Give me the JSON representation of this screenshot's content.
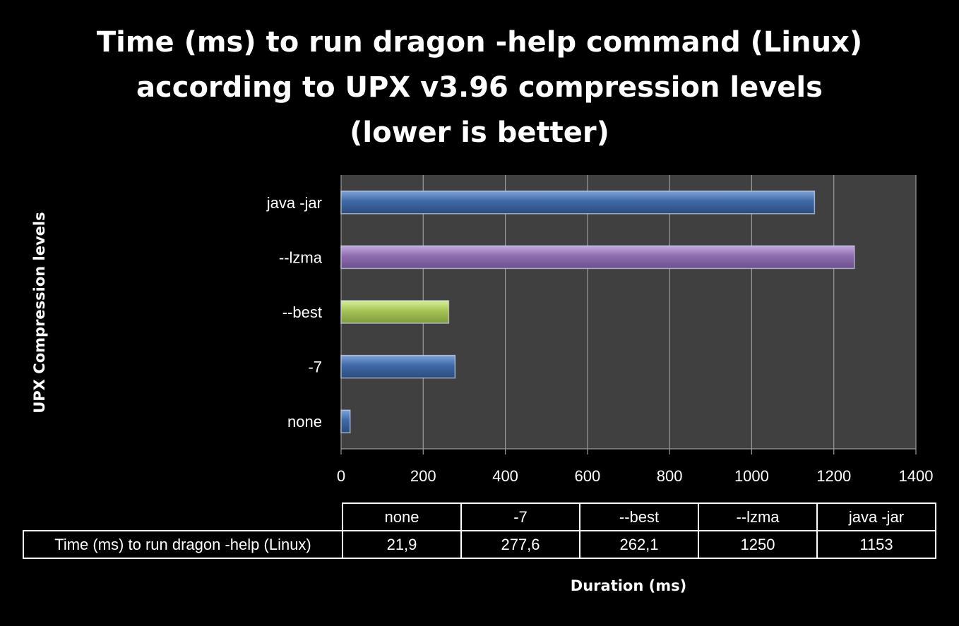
{
  "title_lines": [
    "Time (ms) to run dragon -help command (Linux)",
    "according to UPX v3.96 compression levels",
    "(lower is better)"
  ],
  "chart_data": {
    "type": "bar",
    "orientation": "horizontal",
    "title": "Time (ms) to run dragon -help command (Linux) according to UPX v3.96 compression levels (lower is better)",
    "xlabel": "Duration (ms)",
    "ylabel": "UPX Compression levels",
    "categories": [
      "none",
      "-7",
      "--best",
      "--lzma",
      "java -jar"
    ],
    "values": [
      21.9,
      277.6,
      262.1,
      1250,
      1153
    ],
    "colors": [
      "#4a72ab",
      "#4a72ab",
      "#a8c55a",
      "#9173b1",
      "#4a72ab"
    ],
    "xlim": [
      0,
      1400
    ],
    "xticks": [
      "0",
      "200",
      "400",
      "600",
      "800",
      "1000",
      "1200",
      "1400"
    ],
    "grid": true,
    "data_table": {
      "row_label": "Time (ms) to run dragon -help (Linux)",
      "headers": [
        "none",
        "-7",
        "--best",
        "--lzma",
        "java -jar"
      ],
      "values": [
        "21,9",
        "277,6",
        "262,1",
        "1250",
        "1153"
      ]
    }
  }
}
